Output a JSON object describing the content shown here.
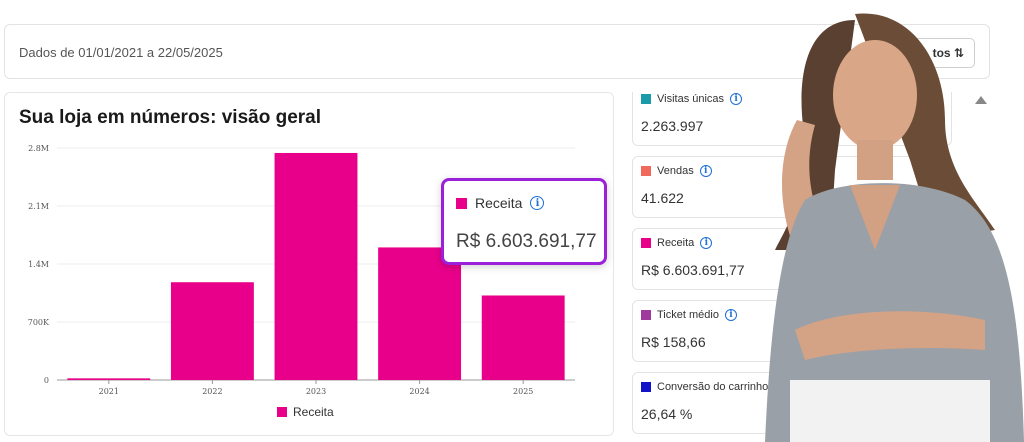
{
  "header": {
    "date_range": "Dados de 01/01/2021 a 22/05/2025",
    "filter_label": "tos ⇅"
  },
  "main": {
    "title": "Sua loja em números: visão geral",
    "legend_label": "Receita"
  },
  "chart_data": {
    "type": "bar",
    "categories": [
      "2021",
      "2022",
      "2023",
      "2024",
      "2025"
    ],
    "series": [
      {
        "name": "Receita",
        "values": [
          20000,
          1180000,
          2740000,
          1600000,
          1020000
        ]
      }
    ],
    "ylim": [
      0,
      2800000
    ],
    "yticks": [
      0,
      700000,
      1400000,
      2100000,
      2800000
    ],
    "ytick_labels": [
      "0",
      "700K",
      "1.4M",
      "2.1M",
      "2.8M"
    ],
    "color": "#E8008A",
    "grid": true
  },
  "tooltip": {
    "label": "Receita",
    "value": "R$ 6.603.691,77"
  },
  "metrics": [
    {
      "label": "Visitas únicas",
      "value": "2.263.997",
      "color": "#1A9BAA"
    },
    {
      "label": "Vendas",
      "value": "41.622",
      "color": "#F06A5B"
    },
    {
      "label": "Receita",
      "value": "R$ 6.603.691,77",
      "color": "#E8008A"
    },
    {
      "label": "Ticket médio",
      "value": "R$ 158,66",
      "color": "#A0399C"
    },
    {
      "label": "Conversão do carrinho",
      "value": "26,64 %",
      "color": "#1212C8"
    }
  ]
}
